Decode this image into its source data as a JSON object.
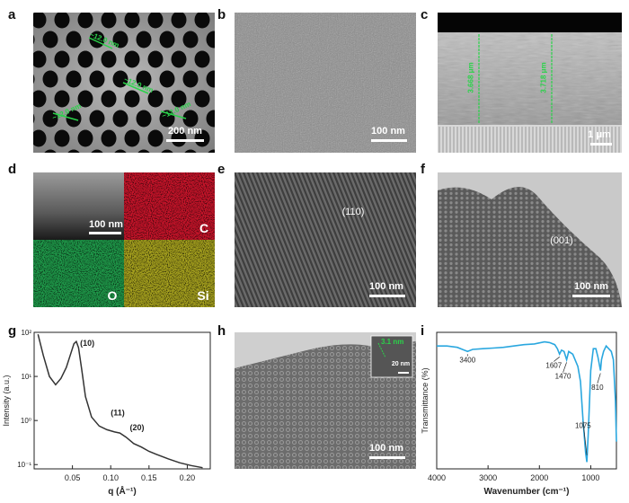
{
  "figure": {
    "panel_labels": [
      "a",
      "b",
      "c",
      "d",
      "e",
      "f",
      "g",
      "h",
      "i"
    ],
    "a": {
      "scale": "200 nm",
      "measure_text": "~12.0 nm"
    },
    "b": {
      "scale": "100 nm"
    },
    "c": {
      "scale": "1 μm",
      "thickness_left": "3.668 μm",
      "thickness_right": "3.718 μm"
    },
    "d": {
      "scale": "100 nm",
      "elements": [
        "C",
        "O",
        "Si"
      ]
    },
    "e": {
      "scale": "100 nm",
      "plane": "(110)"
    },
    "f": {
      "scale": "100 nm",
      "plane": "(001)"
    },
    "h": {
      "scale": "100 nm",
      "inset_scale": "20 nm",
      "inset_text": "3.1 nm"
    },
    "colors": {
      "C": "#c8142a",
      "O": "#1f9a4a",
      "Si": "#a7a21e",
      "ftir_line": "#2aa7df"
    }
  },
  "chart_data": [
    {
      "type": "line",
      "panel": "g",
      "xlabel": "q (Å⁻¹)",
      "ylabel": "Intensity (a.u.)",
      "xlim": [
        0.0,
        0.23
      ],
      "ylim": [
        0.08,
        100
      ],
      "yscale": "log",
      "xticks": [
        "0.05",
        "0.10",
        "0.15",
        "0.20"
      ],
      "yticks": [
        "10⁻¹",
        "10⁰",
        "10¹",
        "10²"
      ],
      "annotations": [
        "(10)",
        "(11)",
        "(20)"
      ],
      "series": [
        {
          "x": [
            0.005,
            0.012,
            0.02,
            0.028,
            0.035,
            0.042,
            0.047,
            0.052,
            0.055,
            0.058,
            0.062,
            0.067,
            0.075,
            0.085,
            0.095,
            0.105,
            0.112,
            0.12,
            0.13,
            0.14,
            0.15,
            0.16,
            0.175,
            0.19,
            0.205,
            0.22
          ],
          "y": [
            90,
            30,
            10,
            6.5,
            9,
            16,
            30,
            55,
            62,
            45,
            15,
            3.5,
            1.2,
            0.75,
            0.62,
            0.55,
            0.52,
            0.42,
            0.3,
            0.25,
            0.2,
            0.17,
            0.135,
            0.11,
            0.095,
            0.085
          ]
        }
      ]
    },
    {
      "type": "line",
      "panel": "i",
      "xlabel": "Wavenumber (cm⁻¹)",
      "ylabel": "Transmittance (%)",
      "xlim": [
        4000,
        500
      ],
      "xticks": [
        "4000",
        "3000",
        "2000",
        "1000"
      ],
      "annotations": [
        "3400",
        "1607",
        "1470",
        "1075",
        "810"
      ],
      "series": [
        {
          "x": [
            4000,
            3800,
            3600,
            3500,
            3400,
            3300,
            3100,
            2900,
            2700,
            2500,
            2300,
            2100,
            1900,
            1800,
            1700,
            1650,
            1607,
            1570,
            1520,
            1470,
            1430,
            1350,
            1250,
            1200,
            1150,
            1100,
            1075,
            1050,
            1000,
            950,
            900,
            860,
            820,
            810,
            790,
            750,
            700,
            650,
            600,
            560,
            520,
            500
          ],
          "y": [
            0.9,
            0.9,
            0.89,
            0.875,
            0.86,
            0.875,
            0.88,
            0.885,
            0.89,
            0.9,
            0.91,
            0.915,
            0.93,
            0.925,
            0.91,
            0.88,
            0.84,
            0.87,
            0.86,
            0.8,
            0.86,
            0.84,
            0.75,
            0.64,
            0.35,
            0.12,
            0.05,
            0.25,
            0.72,
            0.88,
            0.88,
            0.82,
            0.74,
            0.72,
            0.8,
            0.86,
            0.9,
            0.88,
            0.86,
            0.8,
            0.5,
            0.2
          ]
        }
      ]
    }
  ]
}
